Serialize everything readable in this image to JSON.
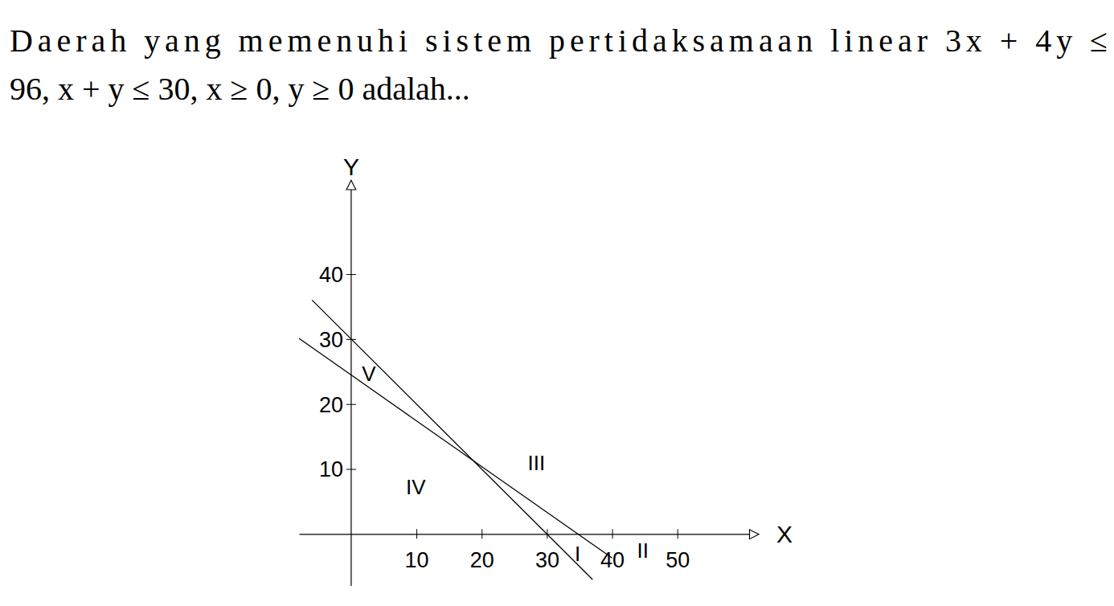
{
  "chart_data": {
    "type": "line",
    "title": [
      "Daerah yang memenuhi sistem pertidaksamaan linear 3x + 4y ≤",
      "96, x + y ≤ 30, x ≥ 0, y ≥ 0 adalah..."
    ],
    "xlabel": "X",
    "ylabel": "Y",
    "xlim": [
      -8,
      61
    ],
    "ylim": [
      -8,
      53
    ],
    "xticks": [
      10,
      20,
      30,
      40,
      50
    ],
    "yticks": [
      10,
      20,
      30,
      40
    ],
    "series": [
      {
        "color": "#000000",
        "x": [
          -6,
          37
        ],
        "values": [
          36,
          -7
        ]
      },
      {
        "color": "#000000",
        "x": [
          -8,
          40
        ],
        "values": [
          30.1,
          -3.7
        ]
      }
    ],
    "annotations": [
      {
        "text": "I",
        "x": 34.7,
        "y": -3
      },
      {
        "text": "II",
        "x": 44.7,
        "y": -2.6
      },
      {
        "text": "III",
        "x": 28.4,
        "y": 11
      },
      {
        "text": "IV",
        "x": 9.9,
        "y": 7.2
      },
      {
        "text": "V",
        "x": 2.7,
        "y": 24.7
      }
    ]
  }
}
